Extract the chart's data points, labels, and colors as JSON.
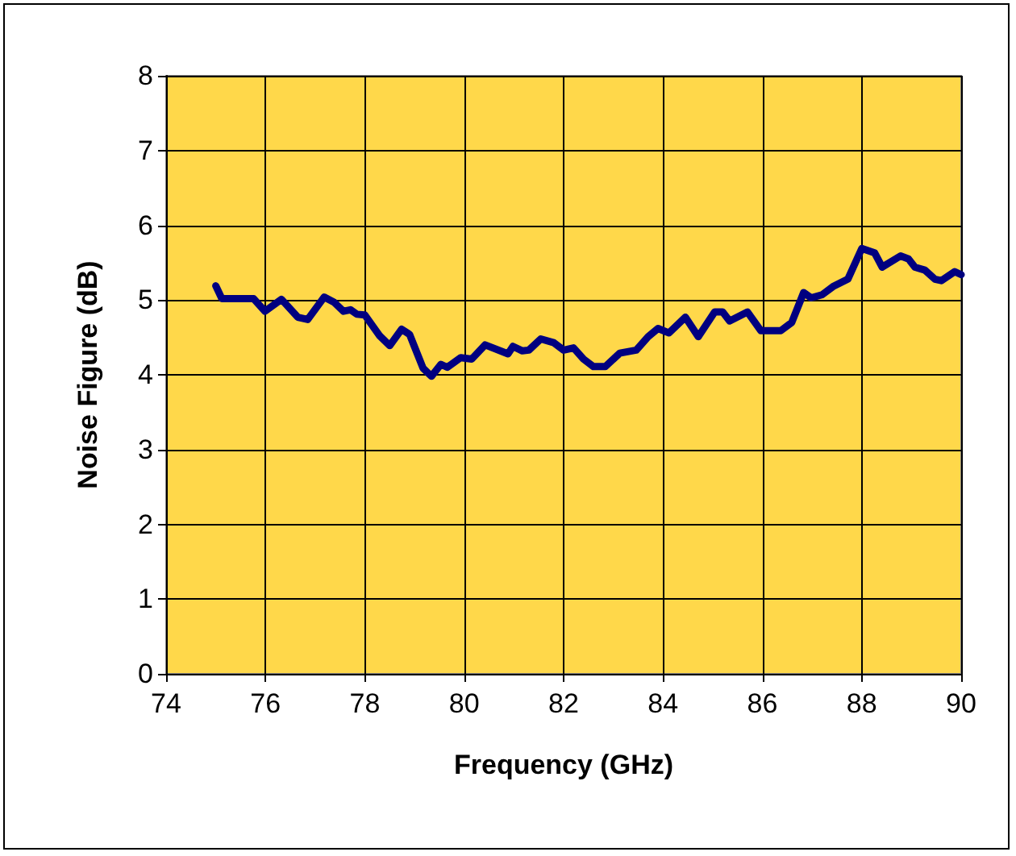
{
  "chart_data": {
    "type": "line",
    "xlabel": "Frequency (GHz)",
    "ylabel": "Noise Figure (dB)",
    "x": [
      75.0,
      75.12,
      75.76,
      75.99,
      76.32,
      76.65,
      76.85,
      77.18,
      77.38,
      77.57,
      77.71,
      77.84,
      78.0,
      78.3,
      78.5,
      78.74,
      78.9,
      79.17,
      79.34,
      79.53,
      79.66,
      79.93,
      80.15,
      80.42,
      80.88,
      80.98,
      81.17,
      81.3,
      81.54,
      81.8,
      82.0,
      82.2,
      82.4,
      82.6,
      82.84,
      83.13,
      83.46,
      83.7,
      83.9,
      84.12,
      84.45,
      84.71,
      85.04,
      85.2,
      85.34,
      85.7,
      85.97,
      86.37,
      86.59,
      86.83,
      86.98,
      87.2,
      87.42,
      87.72,
      88.0,
      88.26,
      88.41,
      88.78,
      88.94,
      89.07,
      89.27,
      89.47,
      89.6,
      89.87,
      90.0
    ],
    "series": [
      {
        "color": "#000080",
        "values": [
          5.19,
          5.02,
          5.02,
          4.85,
          5.01,
          4.77,
          4.74,
          5.04,
          4.97,
          4.85,
          4.87,
          4.81,
          4.8,
          4.52,
          4.39,
          4.61,
          4.54,
          4.09,
          3.98,
          4.14,
          4.1,
          4.23,
          4.21,
          4.4,
          4.28,
          4.38,
          4.32,
          4.33,
          4.48,
          4.43,
          4.33,
          4.36,
          4.21,
          4.11,
          4.11,
          4.29,
          4.33,
          4.51,
          4.62,
          4.56,
          4.77,
          4.51,
          4.84,
          4.84,
          4.72,
          4.84,
          4.59,
          4.59,
          4.7,
          5.1,
          5.03,
          5.07,
          5.18,
          5.28,
          5.69,
          5.63,
          5.44,
          5.59,
          5.55,
          5.44,
          5.4,
          5.28,
          5.26,
          5.38,
          5.34
        ]
      }
    ],
    "xlim": [
      74,
      90
    ],
    "xticks": [
      74,
      76,
      78,
      80,
      82,
      84,
      86,
      88,
      90
    ],
    "ylim": [
      0,
      8
    ],
    "yticks": [
      0,
      1,
      2,
      3,
      4,
      5,
      6,
      7,
      8
    ],
    "grid": true,
    "marker": "none",
    "line_style": "solid"
  }
}
